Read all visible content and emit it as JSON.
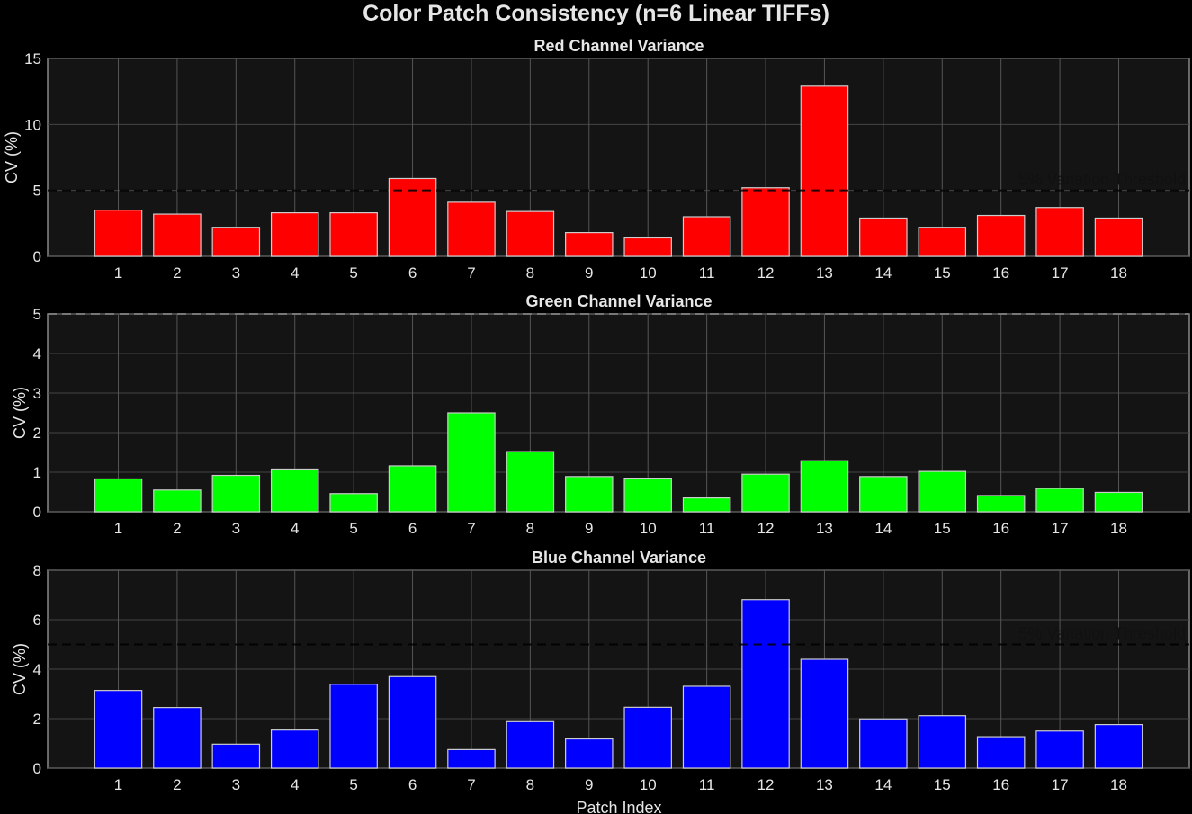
{
  "figure": {
    "suptitle": "Color Patch Consistency (n=6 Linear TIFFs)",
    "background": "#000000",
    "axes_background": "#141414"
  },
  "chart_data": [
    {
      "type": "bar",
      "title": "Red Channel Variance",
      "xlabel": "",
      "ylabel": "CV (%)",
      "ylim": [
        0,
        15
      ],
      "yticks": [
        0,
        5,
        10,
        15
      ],
      "grid": true,
      "color": "#ff0000",
      "categories": [
        "1",
        "2",
        "3",
        "4",
        "5",
        "6",
        "7",
        "8",
        "9",
        "10",
        "11",
        "12",
        "13",
        "14",
        "15",
        "16",
        "17",
        "18"
      ],
      "values": [
        3.5,
        3.2,
        2.2,
        3.3,
        3.3,
        5.9,
        4.1,
        3.4,
        1.8,
        1.4,
        3.0,
        5.2,
        12.9,
        2.9,
        2.2,
        3.1,
        3.7,
        2.9
      ],
      "threshold": {
        "value": 5,
        "label": "5% Variation Threshold",
        "style": "dashed"
      }
    },
    {
      "type": "bar",
      "title": "Green Channel Variance",
      "xlabel": "",
      "ylabel": "CV (%)",
      "ylim": [
        0,
        5
      ],
      "yticks": [
        0,
        1,
        2,
        3,
        4,
        5
      ],
      "grid": true,
      "color": "#00ff00",
      "categories": [
        "1",
        "2",
        "3",
        "4",
        "5",
        "6",
        "7",
        "8",
        "9",
        "10",
        "11",
        "12",
        "13",
        "14",
        "15",
        "16",
        "17",
        "18"
      ],
      "values": [
        0.83,
        0.55,
        0.92,
        1.08,
        0.46,
        1.16,
        2.5,
        1.52,
        0.89,
        0.85,
        0.35,
        0.95,
        1.29,
        0.89,
        1.02,
        0.41,
        0.59,
        0.49
      ],
      "threshold": {
        "value": 5,
        "label": "",
        "style": "dashed"
      }
    },
    {
      "type": "bar",
      "title": "Blue Channel Variance",
      "xlabel": "Patch Index",
      "ylabel": "CV (%)",
      "ylim": [
        0,
        8
      ],
      "yticks": [
        0,
        2,
        4,
        6,
        8
      ],
      "grid": true,
      "color": "#0000ff",
      "categories": [
        "1",
        "2",
        "3",
        "4",
        "5",
        "6",
        "7",
        "8",
        "9",
        "10",
        "11",
        "12",
        "13",
        "14",
        "15",
        "16",
        "17",
        "18"
      ],
      "values": [
        3.14,
        2.45,
        0.97,
        1.54,
        3.39,
        3.7,
        0.75,
        1.88,
        1.18,
        2.46,
        3.31,
        6.81,
        4.4,
        1.99,
        2.12,
        1.27,
        1.5,
        1.76
      ],
      "threshold": {
        "value": 5,
        "label": "5% Variation Threshold",
        "style": "dashed"
      }
    }
  ]
}
